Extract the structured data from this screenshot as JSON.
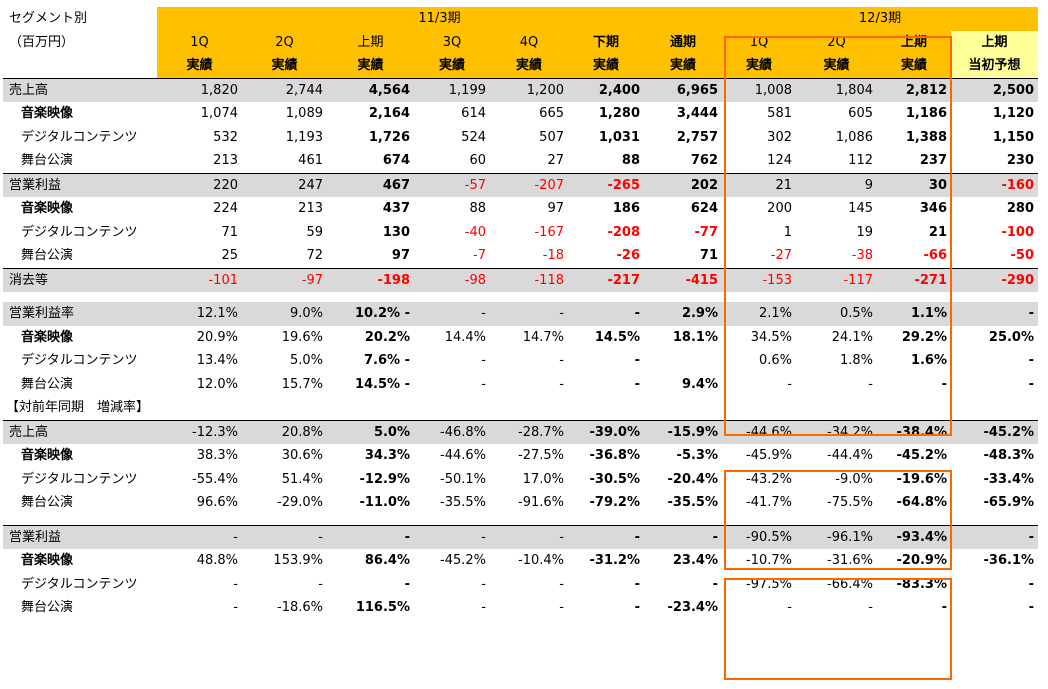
{
  "header": {
    "segment_label": "セグメント別",
    "unit_label": "（百万円）",
    "fy11": "11/3期",
    "fy12": "12/3期",
    "cols": [
      {
        "q": "1Q",
        "k": "実績",
        "bold": false
      },
      {
        "q": "2Q",
        "k": "実績",
        "bold": false
      },
      {
        "q": "上期",
        "k": "実績",
        "bold": false
      },
      {
        "q": "3Q",
        "k": "実績",
        "bold": false
      },
      {
        "q": "4Q",
        "k": "実績",
        "bold": false
      },
      {
        "q": "下期",
        "k": "実績",
        "bold": true
      },
      {
        "q": "通期",
        "k": "実績",
        "bold": true
      },
      {
        "q": "1Q",
        "k": "実績",
        "bold": false
      },
      {
        "q": "2Q",
        "k": "実績",
        "bold": false
      },
      {
        "q": "上期",
        "k": "実績",
        "bold": true
      },
      {
        "q": "上期",
        "k": "当初予想",
        "bold": true
      }
    ]
  },
  "section_title": "【対前年同期　増減率】",
  "rows": [
    {
      "label": "売上高",
      "style": "main",
      "v": [
        "1,820",
        "2,744",
        "4,564",
        "1,199",
        "1,200",
        "2,400",
        "6,965",
        "1,008",
        "1,804",
        "2,812",
        "2,500"
      ]
    },
    {
      "label": "音楽映像",
      "style": "subbold",
      "v": [
        "1,074",
        "1,089",
        "2,164",
        "614",
        "665",
        "1,280",
        "3,444",
        "581",
        "605",
        "1,186",
        "1,120"
      ]
    },
    {
      "label": "デジタルコンテンツ",
      "style": "sub",
      "v": [
        "532",
        "1,193",
        "1,726",
        "524",
        "507",
        "1,031",
        "2,757",
        "302",
        "1,086",
        "1,388",
        "1,150"
      ]
    },
    {
      "label": "舞台公演",
      "style": "sub",
      "v": [
        "213",
        "461",
        "674",
        "60",
        "27",
        "88",
        "762",
        "124",
        "112",
        "237",
        "230"
      ]
    },
    {
      "label": "営業利益",
      "style": "main",
      "v": [
        "220",
        "247",
        "467",
        "-57",
        "-207",
        "-265",
        "202",
        "21",
        "9",
        "30",
        "-160"
      ]
    },
    {
      "label": "音楽映像",
      "style": "subbold",
      "v": [
        "224",
        "213",
        "437",
        "88",
        "97",
        "186",
        "624",
        "200",
        "145",
        "346",
        "280"
      ]
    },
    {
      "label": "デジタルコンテンツ",
      "style": "sub",
      "v": [
        "71",
        "59",
        "130",
        "-40",
        "-167",
        "-208",
        "-77",
        "1",
        "19",
        "21",
        "-100"
      ]
    },
    {
      "label": "舞台公演",
      "style": "sub",
      "v": [
        "25",
        "72",
        "97",
        "-7",
        "-18",
        "-26",
        "71",
        "-27",
        "-38",
        "-66",
        "-50"
      ]
    },
    {
      "label": "消去等",
      "style": "main",
      "v": [
        "-101",
        "-97",
        "-198",
        "-98",
        "-118",
        "-217",
        "-415",
        "-153",
        "-117",
        "-271",
        "-290"
      ]
    },
    {
      "label": "営業利益率",
      "style": "main",
      "v": [
        "12.1%",
        "9.0%",
        "10.2% -",
        "-",
        "-",
        "-",
        "2.9%",
        "2.1%",
        "0.5%",
        "1.1%",
        "-"
      ]
    },
    {
      "label": "音楽映像",
      "style": "subbold",
      "v": [
        "20.9%",
        "19.6%",
        "20.2%",
        "14.4%",
        "14.7%",
        "14.5%",
        "18.1%",
        "34.5%",
        "24.1%",
        "29.2%",
        "25.0%"
      ]
    },
    {
      "label": "デジタルコンテンツ",
      "style": "sub",
      "v": [
        "13.4%",
        "5.0%",
        "7.6% -",
        "-",
        "-",
        "-",
        "",
        "0.6%",
        "1.8%",
        "1.6%",
        "-"
      ]
    },
    {
      "label": "舞台公演",
      "style": "sub",
      "v": [
        "12.0%",
        "15.7%",
        "14.5% -",
        "-",
        "-",
        "-",
        "9.4%",
        "-",
        "-",
        "-",
        "-"
      ]
    },
    {
      "label": "売上高",
      "style": "main",
      "v": [
        "-12.3%",
        "20.8%",
        "5.0%",
        "-46.8%",
        "-28.7%",
        "-39.0%",
        "-15.9%",
        "-44.6%",
        "-34.2%",
        "-38.4%",
        "-45.2%"
      ]
    },
    {
      "label": "音楽映像",
      "style": "subbold",
      "v": [
        "38.3%",
        "30.6%",
        "34.3%",
        "-44.6%",
        "-27.5%",
        "-36.8%",
        "-5.3%",
        "-45.9%",
        "-44.4%",
        "-45.2%",
        "-48.3%"
      ]
    },
    {
      "label": "デジタルコンテンツ",
      "style": "sub",
      "v": [
        "-55.4%",
        "51.4%",
        "-12.9%",
        "-50.1%",
        "17.0%",
        "-30.5%",
        "-20.4%",
        "-43.2%",
        "-9.0%",
        "-19.6%",
        "-33.4%"
      ]
    },
    {
      "label": "舞台公演",
      "style": "sub",
      "v": [
        "96.6%",
        "-29.0%",
        "-11.0%",
        "-35.5%",
        "-91.6%",
        "-79.2%",
        "-35.5%",
        "-41.7%",
        "-75.5%",
        "-64.8%",
        "-65.9%"
      ]
    },
    {
      "label": "営業利益",
      "style": "main",
      "v": [
        "-",
        "-",
        "-",
        "-",
        "-",
        "-",
        "-",
        "-90.5%",
        "-96.1%",
        "-93.4%",
        "-"
      ]
    },
    {
      "label": "音楽映像",
      "style": "subbold",
      "v": [
        "48.8%",
        "153.9%",
        "86.4%",
        "-45.2%",
        "-10.4%",
        "-31.2%",
        "23.4%",
        "-10.7%",
        "-31.6%",
        "-20.9%",
        "-36.1%"
      ]
    },
    {
      "label": "デジタルコンテンツ",
      "style": "sub",
      "v": [
        "-",
        "-",
        "-",
        "-",
        "-",
        "-",
        "-",
        "-97.5%",
        "-66.4%",
        "-83.3%",
        "-"
      ]
    },
    {
      "label": "舞台公演",
      "style": "sub",
      "v": [
        "-",
        "-18.6%",
        "116.5%",
        "-",
        "-",
        "-",
        "-23.4%",
        "-",
        "-",
        "-",
        "-"
      ]
    }
  ],
  "colors": {
    "header_orange": "#ffc000",
    "header_light_yellow": "#ffff99",
    "row_gray": "#d9d9d9",
    "highlight_frame": "#ff6600",
    "negative": "#ff0000"
  }
}
